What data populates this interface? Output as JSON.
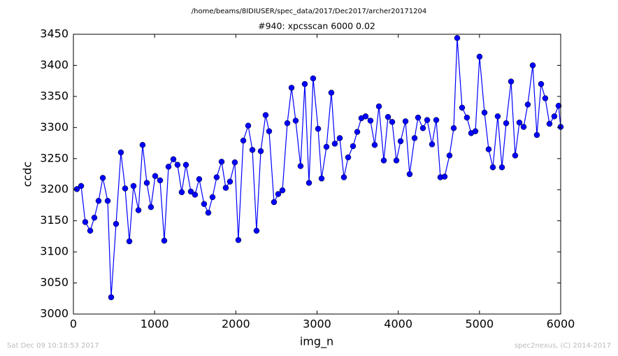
{
  "chart_data": {
    "type": "line",
    "title": "/home/beams/8IDIUSER/spec_data/2017/Dec2017/archer20171204",
    "subtitle": "#940: xpcsscan 6000 0.02",
    "xlabel": "img_n",
    "ylabel": "ccdc",
    "footnotes": [
      "Sat Dec 09 10:18:53 2017",
      "spec2nexus, (C) 2014-2017"
    ],
    "x": [
      43,
      95,
      146,
      207,
      258,
      310,
      362,
      422,
      465,
      525,
      585,
      637,
      689,
      740,
      801,
      852,
      904,
      955,
      1007,
      1067,
      1119,
      1171,
      1231,
      1282,
      1334,
      1386,
      1446,
      1497,
      1549,
      1609,
      1661,
      1713,
      1764,
      1825,
      1876,
      1928,
      1988,
      2031,
      2092,
      2152,
      2204,
      2255,
      2307,
      2367,
      2410,
      2470,
      2522,
      2574,
      2634,
      2686,
      2737,
      2797,
      2849,
      2901,
      2952,
      3013,
      3056,
      3116,
      3176,
      3219,
      3280,
      3331,
      3383,
      3443,
      3495,
      3546,
      3598,
      3658,
      3710,
      3762,
      3822,
      3874,
      3925,
      3977,
      4029,
      4089,
      4140,
      4201,
      4244,
      4304,
      4356,
      4416,
      4468,
      4519,
      4571,
      4631,
      4683,
      4726,
      4786,
      4846,
      4898,
      4950,
      5001,
      5062,
      5113,
      5165,
      5225,
      5277,
      5329,
      5389,
      5440,
      5492,
      5544,
      5595,
      5656,
      5707,
      5759,
      5810,
      5862,
      5922,
      5974,
      6000
    ],
    "series": [
      {
        "color": "#0000ff",
        "values": [
          3201,
          3206,
          3148,
          3134,
          3155,
          3182,
          3219,
          3182,
          3027,
          3145,
          3260,
          3202,
          3117,
          3206,
          3167,
          3272,
          3211,
          3172,
          3222,
          3215,
          3118,
          3237,
          3249,
          3240,
          3196,
          3240,
          3197,
          3192,
          3217,
          3177,
          3163,
          3188,
          3220,
          3245,
          3203,
          3213,
          3244,
          3119,
          3279,
          3303,
          3264,
          3134,
          3262,
          3320,
          3294,
          3180,
          3193,
          3199,
          3307,
          3364,
          3311,
          3238,
          3370,
          3211,
          3379,
          3298,
          3218,
          3269,
          3356,
          3274,
          3283,
          3220,
          3252,
          3270,
          3293,
          3315,
          3318,
          3311,
          3272,
          3334,
          3247,
          3317,
          3309,
          3247,
          3278,
          3310,
          3225,
          3283,
          3316,
          3299,
          3312,
          3273,
          3312,
          3220,
          3221,
          3255,
          3299,
          3444,
          3332,
          3316,
          3291,
          3294,
          3414,
          3324,
          3265,
          3236,
          3318,
          3236,
          3307,
          3374,
          3255,
          3308,
          3301,
          3337,
          3400,
          3288,
          3370,
          3347,
          3306,
          3318,
          3335,
          3301
        ]
      }
    ],
    "xlim": [
      0,
      6000
    ],
    "xticks": [
      0,
      1000,
      2000,
      3000,
      4000,
      5000,
      6000
    ],
    "ylim": [
      3000,
      3450
    ],
    "yticks": [
      3000,
      3050,
      3100,
      3150,
      3200,
      3250,
      3300,
      3350,
      3400,
      3450
    ],
    "grid": false
  }
}
